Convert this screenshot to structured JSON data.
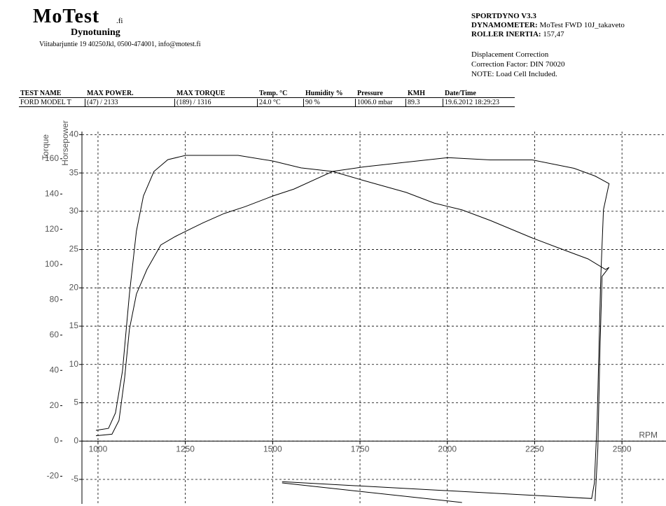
{
  "header": {
    "logo": "MoTest",
    "logo_suffix": ".fi",
    "subtitle": "Dynotuning",
    "address": "Viitabarjuntie 19 40250Jkl, 0500-474001, info@motest.fi",
    "software": "SPORTDYNO V3.3",
    "dynamometer_label": "DYNAMOMETER:",
    "dynamometer": "MoTest FWD 10J_takaveto",
    "inertia_label": "ROLLER INERTIA:",
    "inertia": "157,47",
    "notes": [
      "Displacement Correction",
      "Correction Factor: DIN 70020",
      "NOTE: Load Cell Included."
    ]
  },
  "table": {
    "columns": [
      "TEST NAME",
      "MAX POWER.",
      "MAX TORQUE",
      "Temp. °C",
      "Humidity %",
      "Pressure",
      "KMH",
      "Date/Time"
    ],
    "rows": [
      [
        "FORD MODEL T",
        "(47) / 2133",
        "(189) / 1316",
        "24.0 °C",
        "90 %",
        "1006.0 mbar",
        "89.3",
        "19.6.2012 18:29:23"
      ]
    ]
  },
  "chart_data": {
    "type": "line",
    "x_label": "RPM",
    "y_label": "Torque",
    "y2_label": "Horsepower",
    "xlim": [
      954,
      2626
    ],
    "xticks": [
      1000,
      1250,
      1500,
      1750,
      2000,
      2250,
      2500
    ],
    "ylim": [
      -35.7,
      175.4
    ],
    "yticks": [
      -20,
      0,
      20,
      40,
      60,
      80,
      100,
      120,
      140,
      160
    ],
    "y2lim": [
      -8.2,
      40.4
    ],
    "y2ticks": [
      -5,
      0,
      5,
      10,
      15,
      20,
      25,
      30,
      35,
      40
    ],
    "grid": true,
    "series": [
      {
        "name": "Torque",
        "color": "#000000",
        "x": [
          994,
          1030,
          1050,
          1070,
          1090,
          1110,
          1130,
          1160,
          1200,
          1251,
          1321,
          1401,
          1501,
          1581,
          1672,
          1762,
          1882,
          1962,
          2042,
          2123,
          2243,
          2323,
          2403,
          2453,
          2463,
          2443,
          2437,
          2431,
          2423,
          null,
          1527,
          2042
        ],
        "values": [
          6.0,
          7.1,
          15.9,
          39.7,
          83.3,
          119.0,
          138.9,
          152.8,
          159.5,
          161.9,
          161.9,
          161.9,
          158.7,
          154.8,
          152.8,
          147.6,
          140.9,
          134.9,
          131.0,
          125.0,
          115.1,
          109.1,
          103.2,
          97.2,
          98.4,
          93.3,
          51.6,
          -4.0,
          -34.1,
          null,
          -23.8,
          -34.9
        ]
      },
      {
        "name": "Horsepower",
        "color": "#000000",
        "axis": "y2",
        "x": [
          994,
          1040,
          1060,
          1076,
          1090,
          1110,
          1140,
          1180,
          1221,
          1261,
          1301,
          1361,
          1421,
          1501,
          1561,
          1672,
          1762,
          1882,
          2002,
          2123,
          2243,
          2363,
          2423,
          2463,
          2447,
          2439,
          2429,
          2421,
          2413,
          1527
        ],
        "values": [
          0.7,
          0.9,
          2.7,
          8.2,
          14.6,
          19.2,
          22.4,
          25.6,
          26.7,
          27.6,
          28.5,
          29.7,
          30.6,
          32.0,
          32.9,
          35.2,
          35.8,
          36.4,
          37.0,
          36.7,
          36.7,
          35.6,
          34.6,
          33.6,
          30.2,
          21.0,
          2.7,
          -5.5,
          -7.5,
          -5.3
        ]
      }
    ]
  }
}
